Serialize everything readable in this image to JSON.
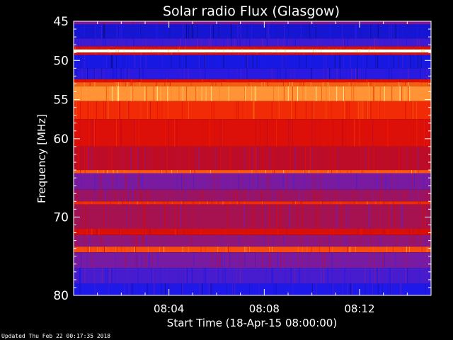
{
  "chart_data": {
    "type": "heatmap",
    "title": "Solar radio Flux (Glasgow)",
    "ylabel": "Frequency [MHz]",
    "xlabel": "Start Time (18-Apr-15 08:00:00)",
    "x_range_minutes": [
      0,
      15
    ],
    "x_tick_labels": [
      "08:04",
      "08:08",
      "08:12"
    ],
    "x_tick_minutes": [
      4,
      8,
      12
    ],
    "ylim": [
      45,
      80
    ],
    "y_ticks": [
      45,
      50,
      55,
      60,
      70,
      80
    ],
    "y_minor_ticks": [
      46,
      47,
      48,
      49,
      51,
      52,
      53,
      54,
      56,
      57,
      58,
      59,
      61,
      62,
      63,
      64,
      65,
      66,
      67,
      68,
      69,
      71,
      72,
      73,
      74,
      75,
      76,
      77,
      78,
      79
    ],
    "colormap": "blue-red-yellow-white",
    "bands": [
      {
        "f0": 45.0,
        "f1": 45.4,
        "level": 0.35
      },
      {
        "f0": 45.4,
        "f1": 47.2,
        "level": 0.12
      },
      {
        "f0": 47.2,
        "f1": 48.2,
        "level": 0.22
      },
      {
        "f0": 48.2,
        "f1": 48.6,
        "level": 0.55
      },
      {
        "f0": 48.6,
        "f1": 49.0,
        "level": 1.0
      },
      {
        "f0": 49.0,
        "f1": 49.3,
        "level": 0.55
      },
      {
        "f0": 49.3,
        "f1": 51.0,
        "level": 0.14
      },
      {
        "f0": 51.0,
        "f1": 52.4,
        "level": 0.18
      },
      {
        "f0": 52.4,
        "f1": 52.8,
        "level": 0.55
      },
      {
        "f0": 52.8,
        "f1": 53.3,
        "level": 0.75
      },
      {
        "f0": 53.3,
        "f1": 55.2,
        "level": 0.82
      },
      {
        "f0": 55.2,
        "f1": 57.5,
        "level": 0.66
      },
      {
        "f0": 57.5,
        "f1": 61.0,
        "level": 0.56
      },
      {
        "f0": 61.0,
        "f1": 64.0,
        "level": 0.46
      },
      {
        "f0": 64.0,
        "f1": 64.4,
        "level": 0.74
      },
      {
        "f0": 64.4,
        "f1": 66.5,
        "level": 0.34
      },
      {
        "f0": 66.5,
        "f1": 68.0,
        "level": 0.4
      },
      {
        "f0": 68.0,
        "f1": 68.4,
        "level": 0.66
      },
      {
        "f0": 68.4,
        "f1": 71.5,
        "level": 0.42
      },
      {
        "f0": 71.5,
        "f1": 72.3,
        "level": 0.55
      },
      {
        "f0": 72.3,
        "f1": 73.8,
        "level": 0.38
      },
      {
        "f0": 73.8,
        "f1": 74.5,
        "level": 0.72
      },
      {
        "f0": 74.5,
        "f1": 76.5,
        "level": 0.34
      },
      {
        "f0": 76.5,
        "f1": 78.5,
        "level": 0.24
      },
      {
        "f0": 78.5,
        "f1": 80.0,
        "level": 0.16
      }
    ]
  },
  "footer": {
    "updated": "Updated Thu Feb 22 00:17:35 2018"
  }
}
